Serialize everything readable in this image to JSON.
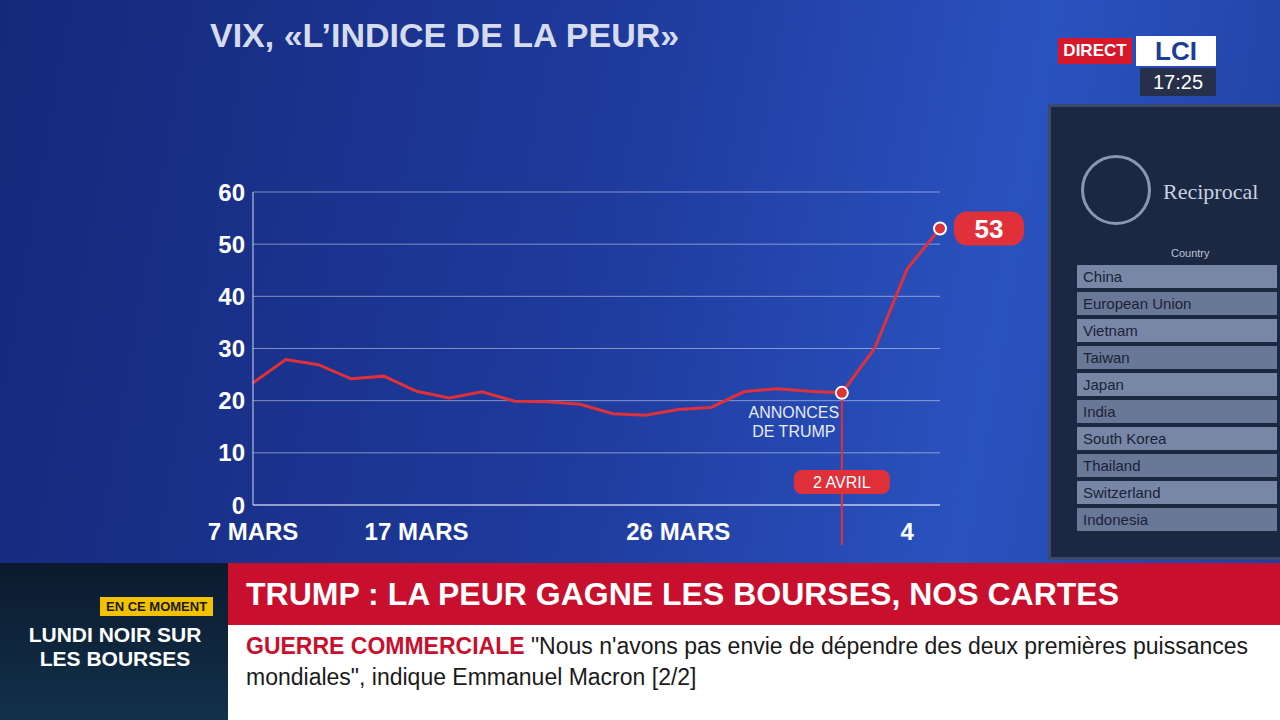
{
  "chart_data": {
    "type": "line",
    "title": "VIX, «L’INDICE DE LA PEUR»",
    "categories": [
      "7 MARS",
      null,
      null,
      null,
      null,
      "17 MARS",
      null,
      null,
      null,
      null,
      null,
      null,
      null,
      "26 MARS",
      null,
      null,
      null,
      null,
      null,
      null,
      "4",
      null
    ],
    "values": [
      23.4,
      27.9,
      26.9,
      24.2,
      24.7,
      21.8,
      20.5,
      21.7,
      19.9,
      19.8,
      19.3,
      17.5,
      17.2,
      18.3,
      18.7,
      21.7,
      22.3,
      21.8,
      21.5,
      30.0,
      45.3,
      53
    ],
    "value_labels": [
      null,
      null,
      null,
      null,
      null,
      null,
      null,
      null,
      null,
      null,
      null,
      null,
      null,
      null,
      null,
      null,
      null,
      null,
      null,
      null,
      null,
      "53"
    ],
    "color": "#e0303a",
    "ylim": [
      0,
      60
    ],
    "yticks": [
      0,
      10,
      20,
      30,
      40,
      50,
      60
    ],
    "grid": true,
    "annotations": [
      {
        "text": "ANNONCES DE TRUMP",
        "label": "2 AVRIL",
        "category_index": 18
      }
    ]
  },
  "broadcast": {
    "live": "DIRECT",
    "channel": "LCI",
    "time": "17:25",
    "headline": "TRUMP : LA PEUR GAGNE LES BOURSES, NOS CARTES",
    "ticker": {
      "topic": "GUERRE COMMERCIALE",
      "text": "\"Nous n'avons pas envie de dépendre des deux premières puissances mondiales\", indique Emmanuel Macron [2/2]"
    },
    "inset": {
      "tag": "EN CE MOMENT",
      "text": "LUNDI NOIR SUR LES BOURSES"
    },
    "document": {
      "title": "Reciprocal",
      "column": "Country",
      "rows": [
        "China",
        "European Union",
        "Vietnam",
        "Taiwan",
        "Japan",
        "India",
        "South Korea",
        "Thailand",
        "Switzerland",
        "Indonesia"
      ]
    }
  }
}
